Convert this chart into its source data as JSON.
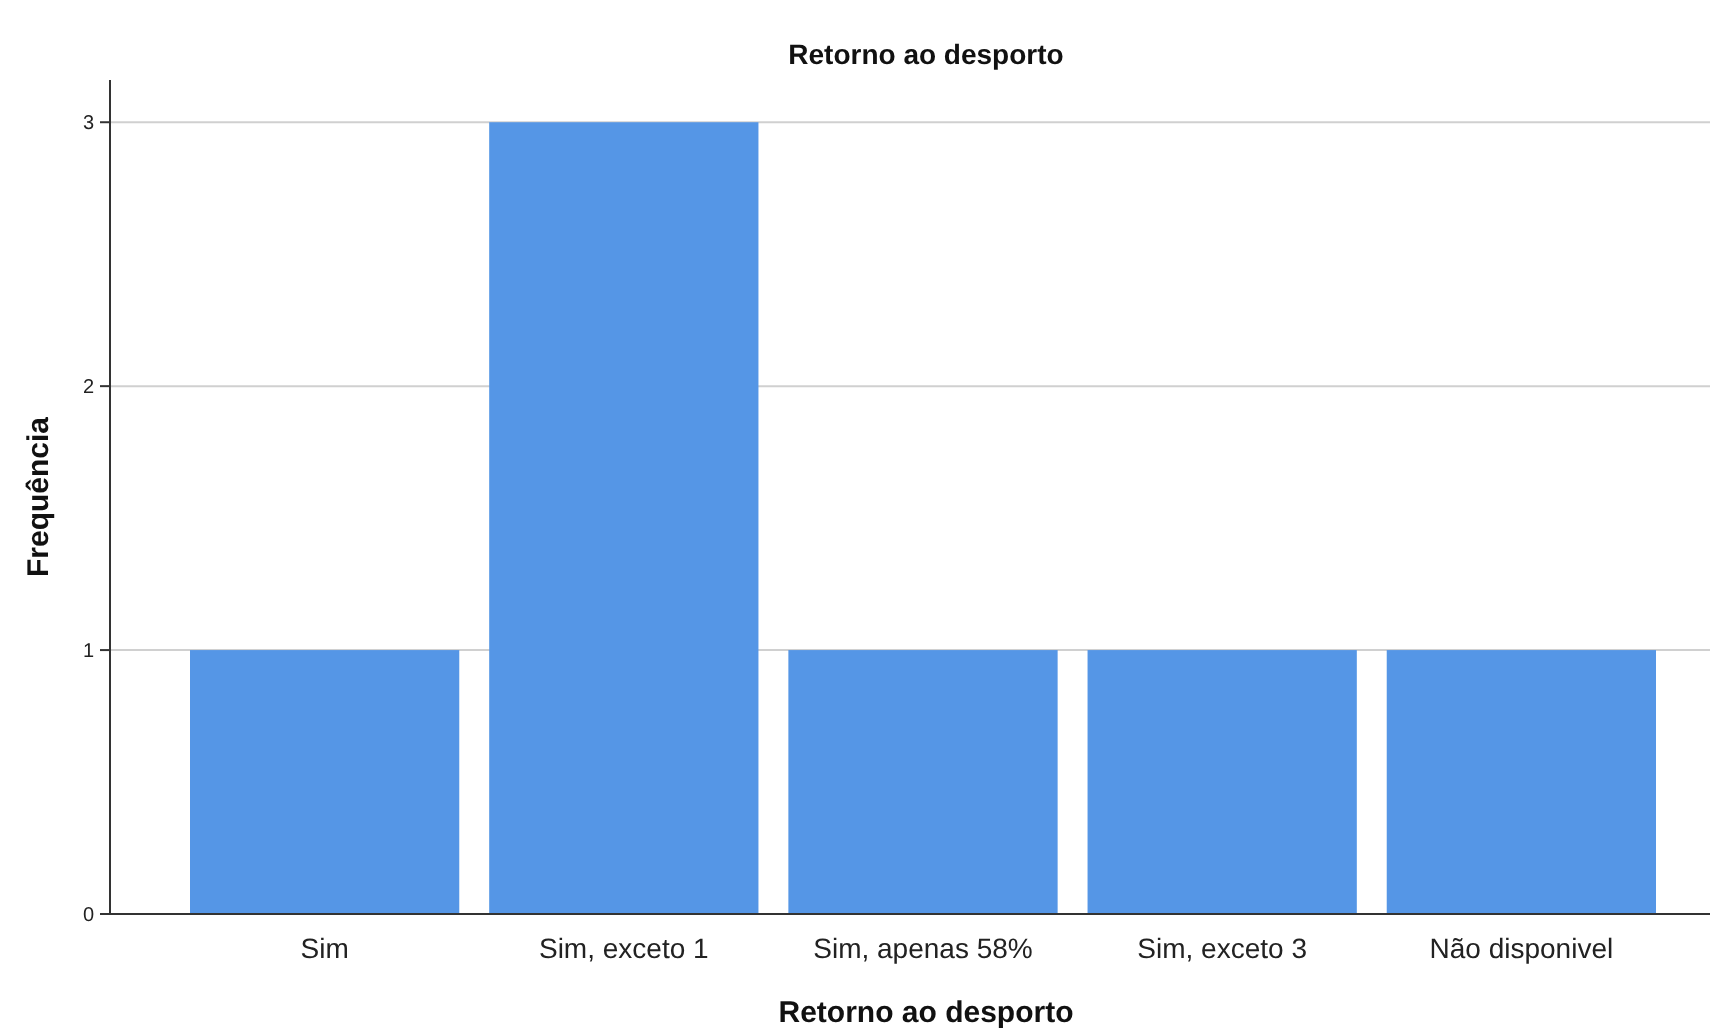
{
  "chart_data": {
    "type": "bar",
    "title": "Retorno ao desporto",
    "xlabel": "Retorno ao desporto",
    "ylabel": "Frequência",
    "categories": [
      "Sim",
      "Sim, exceto 1",
      "Sim, apenas 58%",
      "Sim, exceto 3",
      "Não disponivel"
    ],
    "values": [
      1,
      3,
      1,
      1,
      1
    ],
    "color": "#5596e6",
    "ylim": [
      0,
      3.16
    ],
    "yticks": [
      0,
      1,
      2,
      3
    ],
    "grid": "y"
  }
}
